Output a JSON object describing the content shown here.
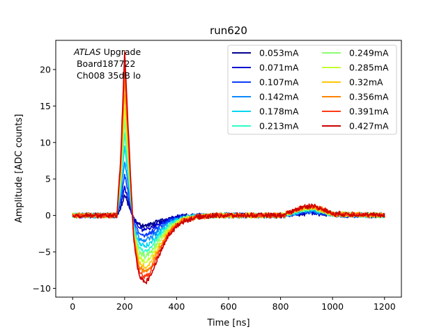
{
  "chart_data": {
    "type": "line",
    "title": "run620",
    "xlabel": "Time [ns]",
    "ylabel": "Amplitude [ADC counts]",
    "xlim": [
      -65,
      1265
    ],
    "ylim": [
      -11.2,
      24
    ],
    "xticks": [
      0,
      200,
      400,
      600,
      800,
      1000,
      1200
    ],
    "yticks": [
      -10,
      -5,
      0,
      5,
      10,
      15,
      20
    ],
    "xtick_labels": [
      "0",
      "200",
      "400",
      "600",
      "800",
      "1000",
      "1200"
    ],
    "ytick_labels": [
      "−10",
      "−5",
      "0",
      "5",
      "10",
      "15",
      "20"
    ],
    "annotation": {
      "line1_italic": "ATLAS",
      "line1_rest": " Upgrade",
      "line2": " Board187722",
      "line3": " Ch008 35dB lo"
    },
    "legend_position": "upper right",
    "legend_columns": 2,
    "grid": false,
    "pulse_shape": {
      "t": [
        0,
        150,
        170,
        185,
        200,
        215,
        235,
        255,
        280,
        300,
        330,
        370,
        420,
        480,
        560,
        700,
        840,
        880,
        920,
        960,
        1000,
        1200
      ],
      "value": [
        0,
        0,
        0.0,
        0.35,
        1.0,
        0.5,
        -0.15,
        -0.38,
        -0.42,
        -0.38,
        -0.26,
        -0.12,
        -0.04,
        -0.01,
        0.0,
        0.0,
        0.02,
        0.05,
        0.06,
        0.04,
        0.01,
        0.0
      ]
    },
    "series": [
      {
        "name": "0.053mA",
        "color": "#00008f",
        "peak": 2.8,
        "undershoot": -1.4,
        "bump": 0.35
      },
      {
        "name": "0.071mA",
        "color": "#0000d0",
        "peak": 3.8,
        "undershoot": -1.9,
        "bump": 0.45
      },
      {
        "name": "0.107mA",
        "color": "#0a3cff",
        "peak": 5.6,
        "undershoot": -2.7,
        "bump": 0.55
      },
      {
        "name": "0.142mA",
        "color": "#0a88ff",
        "peak": 7.6,
        "undershoot": -3.4,
        "bump": 0.65
      },
      {
        "name": "0.178mA",
        "color": "#00d6f0",
        "peak": 9.5,
        "undershoot": -4.2,
        "bump": 0.75
      },
      {
        "name": "0.213mA",
        "color": "#2dffc8",
        "peak": 11.3,
        "undershoot": -4.9,
        "bump": 0.85
      },
      {
        "name": "0.249mA",
        "color": "#88ff6e",
        "peak": 13.1,
        "undershoot": -5.6,
        "bump": 0.95
      },
      {
        "name": "0.285mA",
        "color": "#c4ff32",
        "peak": 15.0,
        "undershoot": -6.4,
        "bump": 1.05
      },
      {
        "name": "0.32mA",
        "color": "#ffc800",
        "peak": 16.8,
        "undershoot": -7.1,
        "bump": 1.1
      },
      {
        "name": "0.356mA",
        "color": "#ff8200",
        "peak": 18.7,
        "undershoot": -7.8,
        "bump": 1.2
      },
      {
        "name": "0.391mA",
        "color": "#ff3a14",
        "peak": 20.6,
        "undershoot": -8.5,
        "bump": 1.3
      },
      {
        "name": "0.427mA",
        "color": "#cc0000",
        "peak": 22.4,
        "undershoot": -9.2,
        "bump": 1.35
      }
    ]
  }
}
